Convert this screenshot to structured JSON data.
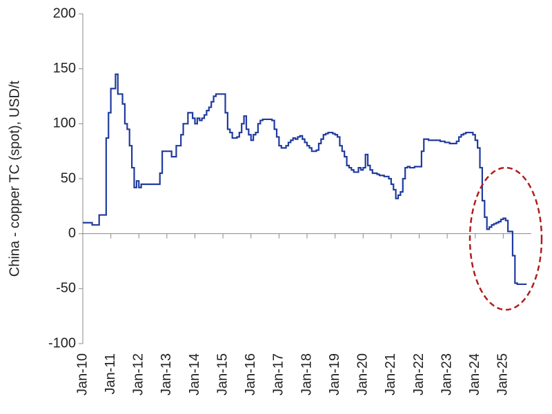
{
  "chart_data": {
    "type": "line",
    "ylabel": "China - copper TC (spot), USD/t",
    "xlim": [
      "2010-01",
      "2026-01"
    ],
    "xticks": [
      {
        "value": "2010-01",
        "label": "Jan-10"
      },
      {
        "value": "2011-01",
        "label": "Jan-11"
      },
      {
        "value": "2012-01",
        "label": "Jan-12"
      },
      {
        "value": "2013-01",
        "label": "Jan-13"
      },
      {
        "value": "2014-01",
        "label": "Jan-14"
      },
      {
        "value": "2015-01",
        "label": "Jan-15"
      },
      {
        "value": "2016-01",
        "label": "Jan-16"
      },
      {
        "value": "2017-01",
        "label": "Jan-17"
      },
      {
        "value": "2018-01",
        "label": "Jan-18"
      },
      {
        "value": "2019-01",
        "label": "Jan-19"
      },
      {
        "value": "2020-01",
        "label": "Jan-20"
      },
      {
        "value": "2021-01",
        "label": "Jan-21"
      },
      {
        "value": "2022-01",
        "label": "Jan-22"
      },
      {
        "value": "2023-01",
        "label": "Jan-23"
      },
      {
        "value": "2024-01",
        "label": "Jan-24"
      },
      {
        "value": "2025-01",
        "label": "Jan-25"
      }
    ],
    "ylim": [
      -100,
      200
    ],
    "yticks": [
      -100,
      -50,
      0,
      50,
      100,
      150,
      200
    ],
    "x": [
      "2010-01",
      "2010-02",
      "2010-03",
      "2010-04",
      "2010-05",
      "2010-06",
      "2010-07",
      "2010-08",
      "2010-09",
      "2010-10",
      "2010-11",
      "2010-12",
      "2011-01",
      "2011-02",
      "2011-03",
      "2011-04",
      "2011-05",
      "2011-06",
      "2011-07",
      "2011-08",
      "2011-09",
      "2011-10",
      "2011-11",
      "2011-12",
      "2012-01",
      "2012-02",
      "2012-03",
      "2012-04",
      "2012-05",
      "2012-06",
      "2012-07",
      "2012-08",
      "2012-09",
      "2012-10",
      "2012-11",
      "2012-12",
      "2013-01",
      "2013-02",
      "2013-03",
      "2013-04",
      "2013-05",
      "2013-06",
      "2013-07",
      "2013-08",
      "2013-09",
      "2013-10",
      "2013-11",
      "2013-12",
      "2014-01",
      "2014-02",
      "2014-03",
      "2014-04",
      "2014-05",
      "2014-06",
      "2014-07",
      "2014-08",
      "2014-09",
      "2014-10",
      "2014-11",
      "2014-12",
      "2015-01",
      "2015-02",
      "2015-03",
      "2015-04",
      "2015-05",
      "2015-06",
      "2015-07",
      "2015-08",
      "2015-09",
      "2015-10",
      "2015-11",
      "2015-12",
      "2016-01",
      "2016-02",
      "2016-03",
      "2016-04",
      "2016-05",
      "2016-06",
      "2016-07",
      "2016-08",
      "2016-09",
      "2016-10",
      "2016-11",
      "2016-12",
      "2017-01",
      "2017-02",
      "2017-03",
      "2017-04",
      "2017-05",
      "2017-06",
      "2017-07",
      "2017-08",
      "2017-09",
      "2017-10",
      "2017-11",
      "2017-12",
      "2018-01",
      "2018-02",
      "2018-03",
      "2018-04",
      "2018-05",
      "2018-06",
      "2018-07",
      "2018-08",
      "2018-09",
      "2018-10",
      "2018-11",
      "2018-12",
      "2019-01",
      "2019-02",
      "2019-03",
      "2019-04",
      "2019-05",
      "2019-06",
      "2019-07",
      "2019-08",
      "2019-09",
      "2019-10",
      "2019-11",
      "2019-12",
      "2020-01",
      "2020-02",
      "2020-03",
      "2020-04",
      "2020-05",
      "2020-06",
      "2020-07",
      "2020-08",
      "2020-09",
      "2020-10",
      "2020-11",
      "2020-12",
      "2021-01",
      "2021-02",
      "2021-03",
      "2021-04",
      "2021-05",
      "2021-06",
      "2021-07",
      "2021-08",
      "2021-09",
      "2021-10",
      "2021-11",
      "2021-12",
      "2022-01",
      "2022-02",
      "2022-03",
      "2022-04",
      "2022-05",
      "2022-06",
      "2022-07",
      "2022-08",
      "2022-09",
      "2022-10",
      "2022-11",
      "2022-12",
      "2023-01",
      "2023-02",
      "2023-03",
      "2023-04",
      "2023-05",
      "2023-06",
      "2023-07",
      "2023-08",
      "2023-09",
      "2023-10",
      "2023-11",
      "2023-12",
      "2024-01",
      "2024-02",
      "2024-03",
      "2024-04",
      "2024-05",
      "2024-06",
      "2024-07",
      "2024-08",
      "2024-09",
      "2024-10",
      "2024-11",
      "2024-12",
      "2025-01",
      "2025-02",
      "2025-03",
      "2025-04",
      "2025-05",
      "2025-06",
      "2025-07",
      "2025-08",
      "2025-09",
      "2025-10",
      "2025-11"
    ],
    "series": [
      {
        "name": "China - copper TC (spot)",
        "color": "#1f3a9e",
        "values": [
          10,
          10,
          10,
          10,
          8,
          8,
          8,
          17,
          17,
          17,
          87,
          110,
          132,
          132,
          145,
          127,
          127,
          118,
          100,
          95,
          80,
          60,
          42,
          48,
          42,
          45,
          45,
          45,
          45,
          45,
          45,
          45,
          45,
          55,
          75,
          75,
          75,
          75,
          70,
          70,
          80,
          80,
          90,
          100,
          100,
          110,
          110,
          105,
          100,
          105,
          103,
          105,
          108,
          112,
          115,
          120,
          125,
          127,
          127,
          127,
          127,
          110,
          95,
          92,
          87,
          87,
          88,
          92,
          100,
          107,
          95,
          90,
          85,
          90,
          92,
          100,
          103,
          104,
          104,
          104,
          104,
          103,
          95,
          88,
          80,
          78,
          78,
          80,
          83,
          85,
          87,
          86,
          88,
          89,
          86,
          83,
          80,
          78,
          75,
          75,
          76,
          82,
          86,
          90,
          91,
          92,
          92,
          91,
          90,
          88,
          80,
          75,
          70,
          62,
          60,
          58,
          56,
          56,
          60,
          58,
          60,
          72,
          62,
          58,
          55,
          55,
          54,
          53,
          53,
          52,
          52,
          50,
          45,
          40,
          32,
          35,
          38,
          50,
          60,
          61,
          60,
          60,
          61,
          61,
          61,
          75,
          86,
          86,
          85,
          85,
          85,
          85,
          85,
          84,
          84,
          83,
          83,
          82,
          82,
          82,
          84,
          88,
          90,
          91,
          92,
          92,
          92,
          90,
          85,
          78,
          60,
          30,
          15,
          4,
          6,
          8,
          9,
          10,
          11,
          13,
          14,
          12,
          2,
          2,
          -20,
          -45,
          -46,
          -46,
          -46,
          -46,
          -46
        ]
      }
    ]
  }
}
